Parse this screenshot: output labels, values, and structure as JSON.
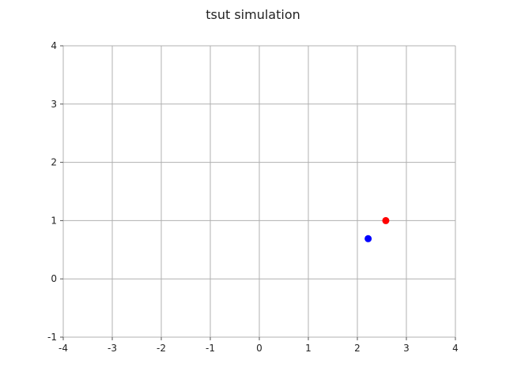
{
  "chart_data": {
    "type": "scatter",
    "title": "tsut simulation",
    "xlabel": "",
    "ylabel": "",
    "xlim": [
      -4,
      4
    ],
    "ylim": [
      -1,
      4
    ],
    "grid": true,
    "x_ticks": [
      "-4",
      "-3",
      "-2",
      "-1",
      "0",
      "1",
      "2",
      "3",
      "4"
    ],
    "y_ticks": [
      "-1",
      "0",
      "1",
      "2",
      "3",
      "4"
    ],
    "series": [
      {
        "points": [
          {
            "x": 2.58,
            "y": 1.0
          }
        ],
        "color": "#ff0000"
      },
      {
        "points": [
          {
            "x": 2.22,
            "y": 0.69
          }
        ],
        "color": "#0000ff"
      }
    ]
  }
}
